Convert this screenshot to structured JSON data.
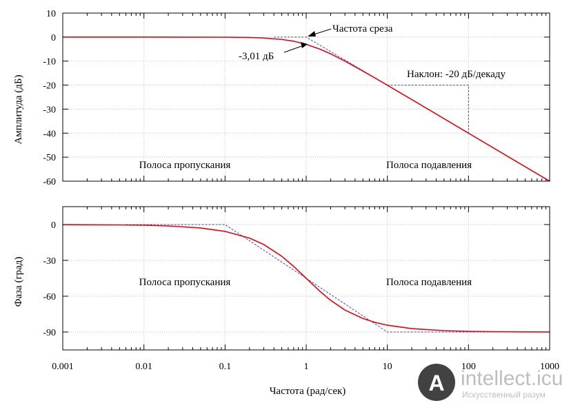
{
  "chart_data": [
    {
      "type": "line",
      "title": "",
      "xlabel": "",
      "ylabel": "Амплитуда (дБ)",
      "x_scale": "log",
      "xlim": [
        0.001,
        1000
      ],
      "ylim": [
        -60,
        10
      ],
      "grid": true,
      "x_ticks": [
        0.001,
        0.01,
        0.1,
        1,
        10,
        100,
        1000
      ],
      "y_ticks": [
        "10",
        "0",
        "-10",
        "-20",
        "-30",
        "-40",
        "-50",
        "-60"
      ],
      "series": [
        {
          "color": "#e8000b",
          "style": "solid",
          "x": [
            0.001,
            0.01,
            0.1,
            0.2,
            0.3,
            0.5,
            0.7,
            1,
            1.5,
            2,
            3,
            5,
            7,
            10,
            20,
            50,
            100,
            200,
            500,
            1000
          ],
          "y": [
            0,
            0,
            -0.04,
            -0.17,
            -0.37,
            -0.97,
            -1.7,
            -3.01,
            -5.1,
            -6.99,
            -10,
            -14.15,
            -17.0,
            -20.04,
            -26.02,
            -33.98,
            -40,
            -46.02,
            -53.98,
            -60
          ]
        },
        {
          "color": "#4040c0",
          "style": "dashed",
          "x": [
            0.4,
            1,
            1000
          ],
          "y": [
            0,
            0,
            -60
          ]
        },
        {
          "color": "#4040c0",
          "style": "dashed",
          "x": [
            10,
            100,
            100
          ],
          "y": [
            -20,
            -20,
            -40
          ]
        }
      ],
      "annotations": [
        {
          "text": "Частота среза",
          "x": 1,
          "y": 0
        },
        {
          "text": "-3,01 дБ",
          "x": 1,
          "y": -3.01
        },
        {
          "text": "Наклон: -20 дБ/декаду"
        },
        {
          "text": "Полоса пропускания"
        },
        {
          "text": "Полоса подавления"
        }
      ]
    },
    {
      "type": "line",
      "title": "",
      "xlabel": "Частота (рад/сек)",
      "ylabel": "Фаза (град)",
      "x_scale": "log",
      "xlim": [
        0.001,
        1000
      ],
      "ylim": [
        -105,
        15
      ],
      "grid": true,
      "x_ticks": [
        0.001,
        0.01,
        0.1,
        1,
        10,
        100,
        1000
      ],
      "x_tick_labels": [
        "0.001",
        "0.01",
        "0.1",
        "1",
        "10",
        "100",
        "1000"
      ],
      "y_ticks": [
        "0",
        "-30",
        "-60",
        "-90"
      ],
      "series": [
        {
          "color": "#e8000b",
          "style": "solid",
          "x": [
            0.001,
            0.005,
            0.01,
            0.02,
            0.05,
            0.1,
            0.2,
            0.3,
            0.5,
            0.7,
            1,
            1.5,
            2,
            3,
            5,
            7,
            10,
            20,
            50,
            100,
            200,
            500,
            1000
          ],
          "y": [
            -0.06,
            -0.29,
            -0.57,
            -1.15,
            -2.86,
            -5.71,
            -11.31,
            -16.7,
            -26.57,
            -34.99,
            -45,
            -56.31,
            -63.43,
            -71.57,
            -78.69,
            -81.87,
            -84.29,
            -87.14,
            -88.85,
            -89.43,
            -89.71,
            -89.89,
            -89.94
          ]
        },
        {
          "color": "#4040c0",
          "style": "dashed",
          "x": [
            0.006,
            0.1,
            10,
            1000
          ],
          "y": [
            0,
            0,
            -90,
            -90
          ]
        }
      ],
      "annotations": [
        {
          "text": "Полоса пропускания"
        },
        {
          "text": "Полоса подавления"
        }
      ]
    }
  ],
  "watermark": {
    "brand": "intellect.icu",
    "tagline": "Искусственный разум",
    "letter": "A",
    "colors": {
      "logo": "#2e2e2e",
      "text": "#b8b8b8"
    }
  },
  "colors": {
    "grid": "#bfbfbf",
    "frame": "#000000"
  }
}
